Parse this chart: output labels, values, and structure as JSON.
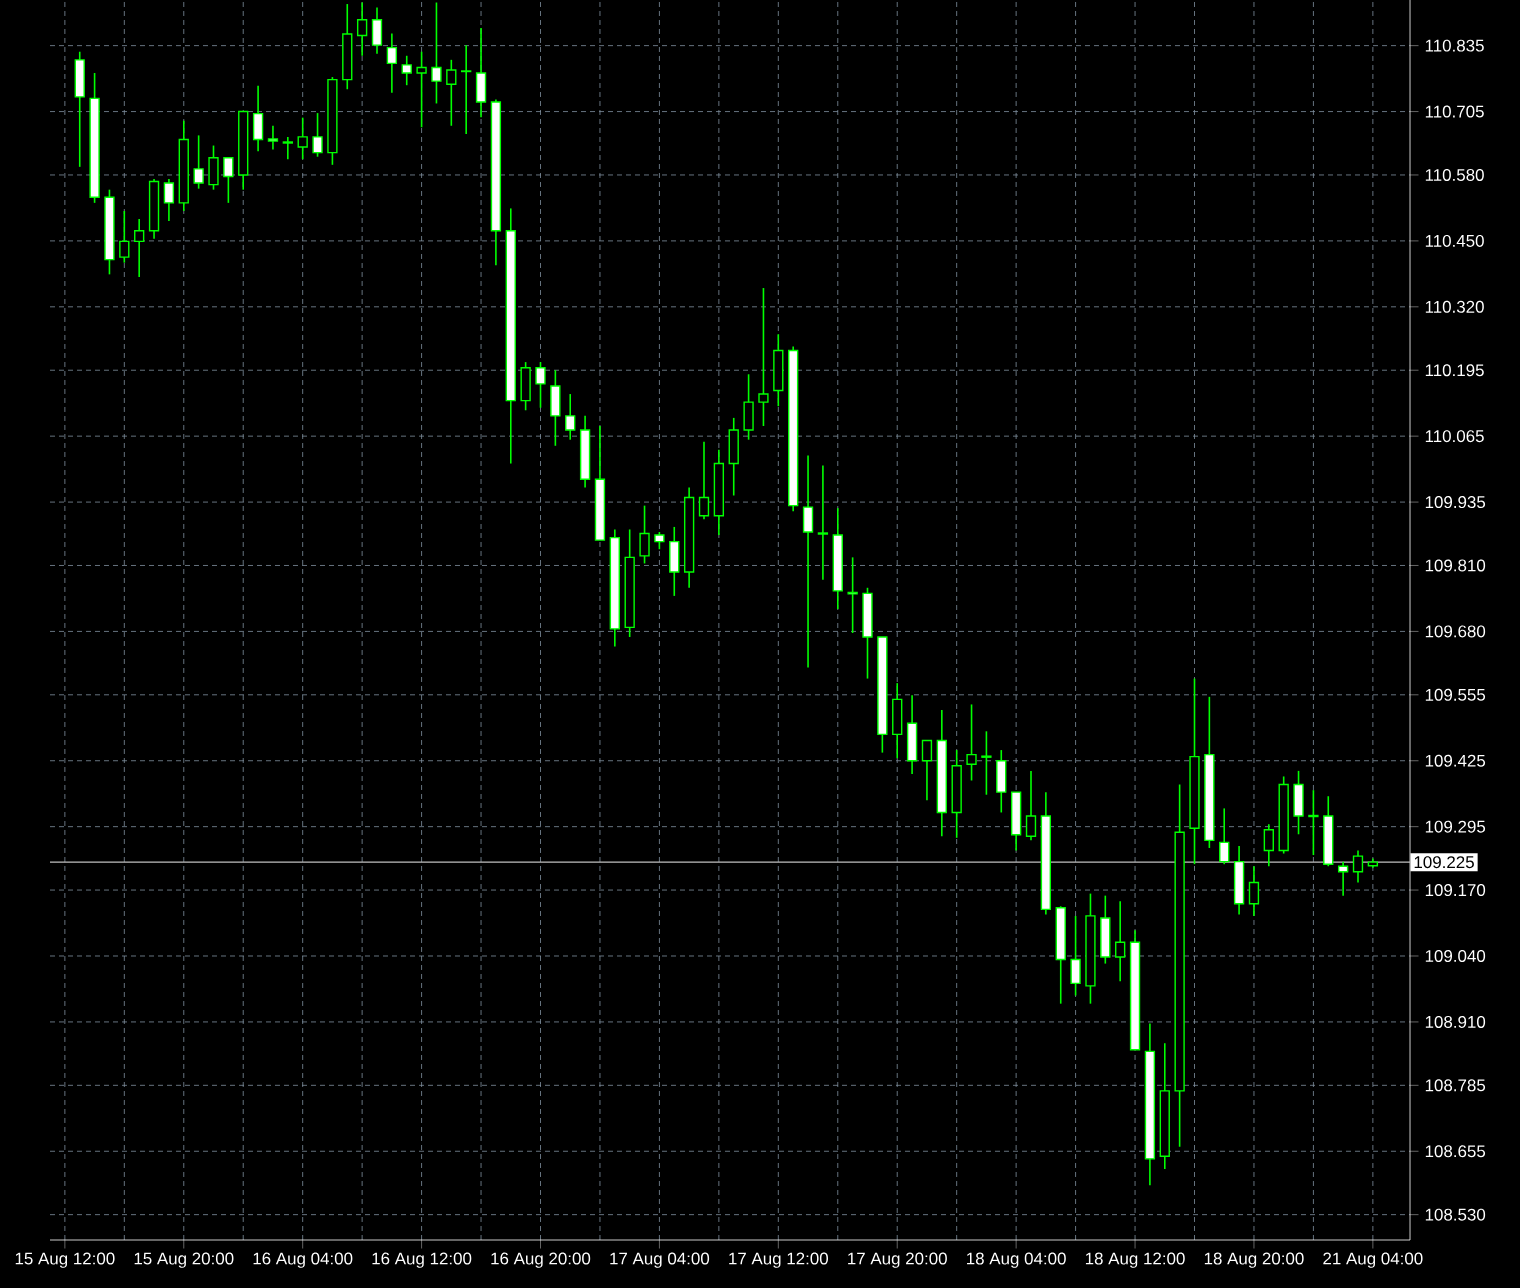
{
  "chart_data": {
    "type": "candlestick",
    "categories": [
      "15 Aug 12:00",
      null,
      null,
      null,
      null,
      null,
      null,
      null,
      "15 Aug 20:00",
      null,
      null,
      null,
      null,
      null,
      null,
      null,
      "16 Aug 04:00",
      null,
      null,
      null,
      null,
      null,
      null,
      null,
      "16 Aug 12:00",
      null,
      null,
      null,
      null,
      null,
      null,
      null,
      "16 Aug 20:00",
      null,
      null,
      null,
      null,
      null,
      null,
      null,
      "17 Aug 04:00",
      null,
      null,
      null,
      null,
      null,
      null,
      null,
      "17 Aug 12:00",
      null,
      null,
      null,
      null,
      null,
      null,
      null,
      "17 Aug 20:00",
      null,
      null,
      null,
      null,
      null,
      null,
      null,
      "18 Aug 04:00",
      null,
      null,
      null,
      null,
      null,
      null,
      null,
      "18 Aug 12:00",
      null,
      null,
      null,
      null,
      null,
      null,
      null,
      "18 Aug 20:00",
      null,
      null,
      null,
      null,
      null,
      null,
      null,
      "21 Aug 04:00"
    ],
    "ohlc": [
      null,
      [
        110.807,
        110.823,
        110.596,
        110.734
      ],
      [
        110.731,
        110.781,
        110.525,
        110.536
      ],
      [
        110.536,
        110.551,
        110.384,
        110.413
      ],
      [
        110.418,
        110.509,
        110.407,
        110.449
      ],
      [
        110.449,
        110.493,
        110.379,
        110.47
      ],
      [
        110.47,
        110.572,
        110.454,
        110.567
      ],
      [
        110.564,
        110.572,
        110.489,
        110.525
      ],
      [
        110.525,
        110.687,
        110.509,
        110.65
      ],
      [
        110.592,
        110.658,
        110.553,
        110.564
      ],
      [
        110.561,
        110.638,
        110.551,
        110.614
      ],
      [
        110.614,
        110.614,
        110.525,
        110.577
      ],
      [
        110.58,
        110.705,
        110.551,
        110.705
      ],
      [
        110.701,
        110.756,
        110.627,
        110.65
      ],
      [
        110.651,
        110.677,
        110.63,
        110.647
      ],
      [
        110.645,
        110.655,
        110.611,
        110.643
      ],
      [
        110.635,
        110.693,
        110.611,
        110.655
      ],
      [
        110.655,
        110.702,
        110.616,
        110.624
      ],
      [
        110.624,
        110.773,
        110.6,
        110.768
      ],
      [
        110.768,
        110.917,
        110.749,
        110.858
      ],
      [
        110.855,
        110.92,
        110.815,
        110.886
      ],
      [
        110.886,
        110.91,
        110.819,
        110.836
      ],
      [
        110.831,
        110.859,
        110.742,
        110.8
      ],
      [
        110.797,
        110.815,
        110.757,
        110.781
      ],
      [
        110.781,
        110.823,
        110.674,
        110.792
      ],
      [
        110.792,
        110.92,
        110.721,
        110.765
      ],
      [
        110.759,
        110.807,
        110.677,
        110.787
      ],
      [
        110.785,
        110.836,
        110.661,
        110.784
      ],
      [
        110.781,
        110.87,
        110.694,
        110.724
      ],
      [
        110.724,
        110.729,
        110.402,
        110.47
      ],
      [
        110.47,
        110.514,
        110.011,
        110.135
      ],
      [
        110.135,
        110.211,
        110.116,
        110.2
      ],
      [
        110.2,
        110.211,
        110.121,
        110.168
      ],
      [
        110.164,
        110.195,
        110.046,
        110.105
      ],
      [
        110.105,
        110.148,
        110.058,
        110.077
      ],
      [
        110.077,
        110.105,
        109.964,
        109.98
      ],
      [
        109.98,
        110.085,
        109.86,
        109.86
      ],
      [
        109.865,
        109.881,
        109.65,
        109.685
      ],
      [
        109.688,
        109.881,
        109.669,
        109.826
      ],
      [
        109.829,
        109.928,
        109.814,
        109.873
      ],
      [
        109.87,
        109.876,
        109.842,
        109.857
      ],
      [
        109.857,
        109.886,
        109.75,
        109.797
      ],
      [
        109.797,
        109.964,
        109.766,
        109.944
      ],
      [
        109.908,
        110.054,
        109.901,
        109.944
      ],
      [
        109.908,
        110.038,
        109.87,
        110.011
      ],
      [
        110.011,
        110.101,
        109.948,
        110.077
      ],
      [
        110.077,
        110.187,
        110.058,
        110.132
      ],
      [
        110.132,
        110.357,
        110.085,
        110.148
      ],
      [
        110.155,
        110.266,
        110.124,
        110.234
      ],
      [
        110.234,
        110.242,
        109.917,
        109.928
      ],
      [
        109.925,
        110.027,
        109.609,
        109.876
      ],
      [
        109.874,
        110.007,
        109.782,
        109.872
      ],
      [
        109.87,
        109.923,
        109.724,
        109.76
      ],
      [
        109.757,
        109.826,
        109.677,
        109.754
      ],
      [
        109.755,
        109.766,
        109.587,
        109.669
      ],
      [
        109.669,
        109.669,
        109.441,
        109.477
      ],
      [
        109.477,
        109.578,
        109.43,
        109.546
      ],
      [
        109.499,
        109.554,
        109.399,
        109.425
      ],
      [
        109.425,
        109.465,
        109.347,
        109.465
      ],
      [
        109.465,
        109.525,
        109.276,
        109.323
      ],
      [
        109.323,
        109.446,
        109.273,
        109.415
      ],
      [
        109.418,
        109.536,
        109.386,
        109.437
      ],
      [
        109.434,
        109.483,
        109.358,
        109.432
      ],
      [
        109.425,
        109.446,
        109.323,
        109.363
      ],
      [
        109.363,
        109.363,
        109.248,
        109.279
      ],
      [
        109.276,
        109.405,
        109.268,
        109.316
      ],
      [
        109.316,
        109.363,
        109.122,
        109.132
      ],
      [
        109.135,
        109.138,
        108.946,
        109.033
      ],
      [
        109.033,
        109.119,
        108.962,
        108.986
      ],
      [
        108.981,
        109.163,
        108.946,
        109.119
      ],
      [
        109.115,
        109.159,
        109.025,
        109.038
      ],
      [
        109.038,
        109.148,
        108.99,
        109.067
      ],
      [
        109.067,
        109.091,
        108.855,
        108.855
      ],
      [
        108.852,
        108.907,
        108.588,
        108.64
      ],
      [
        108.645,
        108.868,
        108.62,
        108.774
      ],
      [
        108.774,
        109.378,
        108.664,
        109.284
      ],
      [
        109.292,
        109.587,
        109.221,
        109.433
      ],
      [
        109.437,
        109.551,
        109.253,
        109.268
      ],
      [
        109.264,
        109.331,
        109.221,
        109.226
      ],
      [
        109.226,
        109.257,
        109.122,
        109.143
      ],
      [
        109.143,
        109.217,
        109.119,
        109.185
      ],
      [
        109.248,
        109.3,
        109.217,
        109.289
      ],
      [
        109.248,
        109.394,
        109.242,
        109.378
      ],
      [
        109.378,
        109.405,
        109.28,
        109.316
      ],
      [
        109.317,
        109.367,
        109.239,
        109.315
      ],
      [
        109.316,
        109.355,
        109.217,
        109.221
      ],
      [
        109.217,
        109.226,
        109.159,
        109.206
      ],
      [
        109.206,
        109.248,
        109.185,
        109.237
      ],
      [
        109.218,
        109.232,
        109.214,
        109.225
      ]
    ],
    "color": "#00ff00",
    "ylim": [
      108.48,
      110.925
    ],
    "yticks": [
      {
        "value": 110.835,
        "label": "110.835"
      },
      {
        "value": 110.705,
        "label": "110.705"
      },
      {
        "value": 110.58,
        "label": "110.580"
      },
      {
        "value": 110.45,
        "label": "110.450"
      },
      {
        "value": 110.32,
        "label": "110.320"
      },
      {
        "value": 110.195,
        "label": "110.195"
      },
      {
        "value": 110.065,
        "label": "110.065"
      },
      {
        "value": 109.935,
        "label": "109.935"
      },
      {
        "value": 109.81,
        "label": "109.810"
      },
      {
        "value": 109.68,
        "label": "109.680"
      },
      {
        "value": 109.555,
        "label": "109.555"
      },
      {
        "value": 109.425,
        "label": "109.425"
      },
      {
        "value": 109.295,
        "label": "109.295"
      },
      {
        "value": 109.17,
        "label": "109.170"
      },
      {
        "value": 109.04,
        "label": "109.040"
      },
      {
        "value": 108.91,
        "label": "108.910"
      },
      {
        "value": 108.785,
        "label": "108.785"
      },
      {
        "value": 108.655,
        "label": "108.655"
      },
      {
        "value": 108.53,
        "label": "108.530"
      }
    ],
    "grid": true,
    "ref_lines": [
      {
        "axis": "y",
        "value": 109.225,
        "label": "109.225",
        "color": "#c0c0c0"
      }
    ]
  }
}
